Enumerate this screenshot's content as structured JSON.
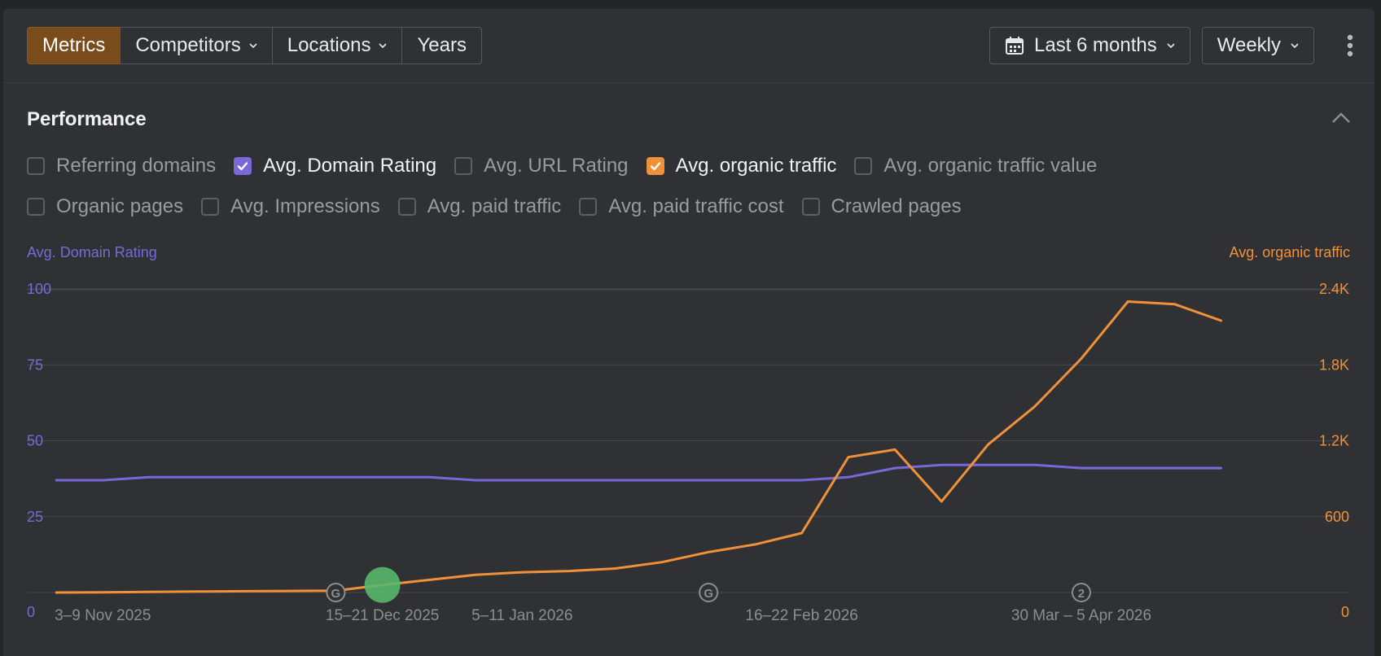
{
  "toolbar": {
    "tabs": [
      {
        "label": "Metrics",
        "active": true,
        "dropdown": false
      },
      {
        "label": "Competitors",
        "active": false,
        "dropdown": true
      },
      {
        "label": "Locations",
        "active": false,
        "dropdown": true
      },
      {
        "label": "Years",
        "active": false,
        "dropdown": false
      }
    ],
    "date_range": "Last 6 months",
    "interval": "Weekly"
  },
  "section": {
    "title": "Performance"
  },
  "metrics": {
    "row1": [
      {
        "label": "Referring domains",
        "checked": false,
        "color": ""
      },
      {
        "label": "Avg. Domain Rating",
        "checked": true,
        "color": "#7b68d8"
      },
      {
        "label": "Avg. URL Rating",
        "checked": false,
        "color": ""
      },
      {
        "label": "Avg. organic traffic",
        "checked": true,
        "color": "#f0913a"
      },
      {
        "label": "Avg. organic traffic value",
        "checked": false,
        "color": ""
      }
    ],
    "row2": [
      {
        "label": "Organic pages",
        "checked": false,
        "color": ""
      },
      {
        "label": "Avg. Impressions",
        "checked": false,
        "color": ""
      },
      {
        "label": "Avg. paid traffic",
        "checked": false,
        "color": ""
      },
      {
        "label": "Avg. paid traffic cost",
        "checked": false,
        "color": ""
      },
      {
        "label": "Crawled pages",
        "checked": false,
        "color": ""
      }
    ]
  },
  "colors": {
    "domain_rating": "#7b68d8",
    "organic_traffic": "#f0913a",
    "grid": "#47484c",
    "tick": "#8c8d91",
    "marker": "#57b86a"
  },
  "chart_data": {
    "type": "line",
    "left_axis_title": "Avg. Domain Rating",
    "right_axis_title": "Avg. organic traffic",
    "left_ylim": [
      0,
      100
    ],
    "left_ticks": [
      "0",
      "25",
      "50",
      "75",
      "100"
    ],
    "right_ylim": [
      0,
      2400
    ],
    "right_ticks": [
      "0",
      "600",
      "1.2K",
      "1.8K",
      "2.4K"
    ],
    "x_tick_labels": [
      {
        "label": "3–9 Nov 2025",
        "index": 1
      },
      {
        "label": "15–21 Dec 2025",
        "index": 7
      },
      {
        "label": "5–11 Jan 2026",
        "index": 10
      },
      {
        "label": "16–22 Feb 2026",
        "index": 16
      },
      {
        "label": "30 Mar – 5 Apr 2026",
        "index": 22
      }
    ],
    "x_index_range": [
      -0.63,
      27.75
    ],
    "series": [
      {
        "name": "Avg. Domain Rating",
        "axis": "left",
        "values": [
          37,
          37,
          38,
          38,
          38,
          38,
          38,
          38,
          38,
          37,
          37,
          37,
          37,
          37,
          37,
          37,
          37,
          38,
          41,
          42,
          42,
          42,
          41,
          41,
          41,
          41
        ]
      },
      {
        "name": "Avg. organic traffic",
        "axis": "right",
        "values": [
          0,
          2,
          5,
          8,
          10,
          12,
          15,
          60,
          100,
          140,
          160,
          170,
          190,
          240,
          320,
          380,
          470,
          1070,
          1130,
          720,
          1170,
          1470,
          1850,
          2300,
          2280,
          2150
        ]
      }
    ],
    "annotations": [
      {
        "label": "G",
        "index": 6
      },
      {
        "label": "G",
        "index": 14
      },
      {
        "label": "2",
        "index": 22
      }
    ],
    "highlight_point": {
      "series": "Avg. organic traffic",
      "index": 7
    }
  }
}
